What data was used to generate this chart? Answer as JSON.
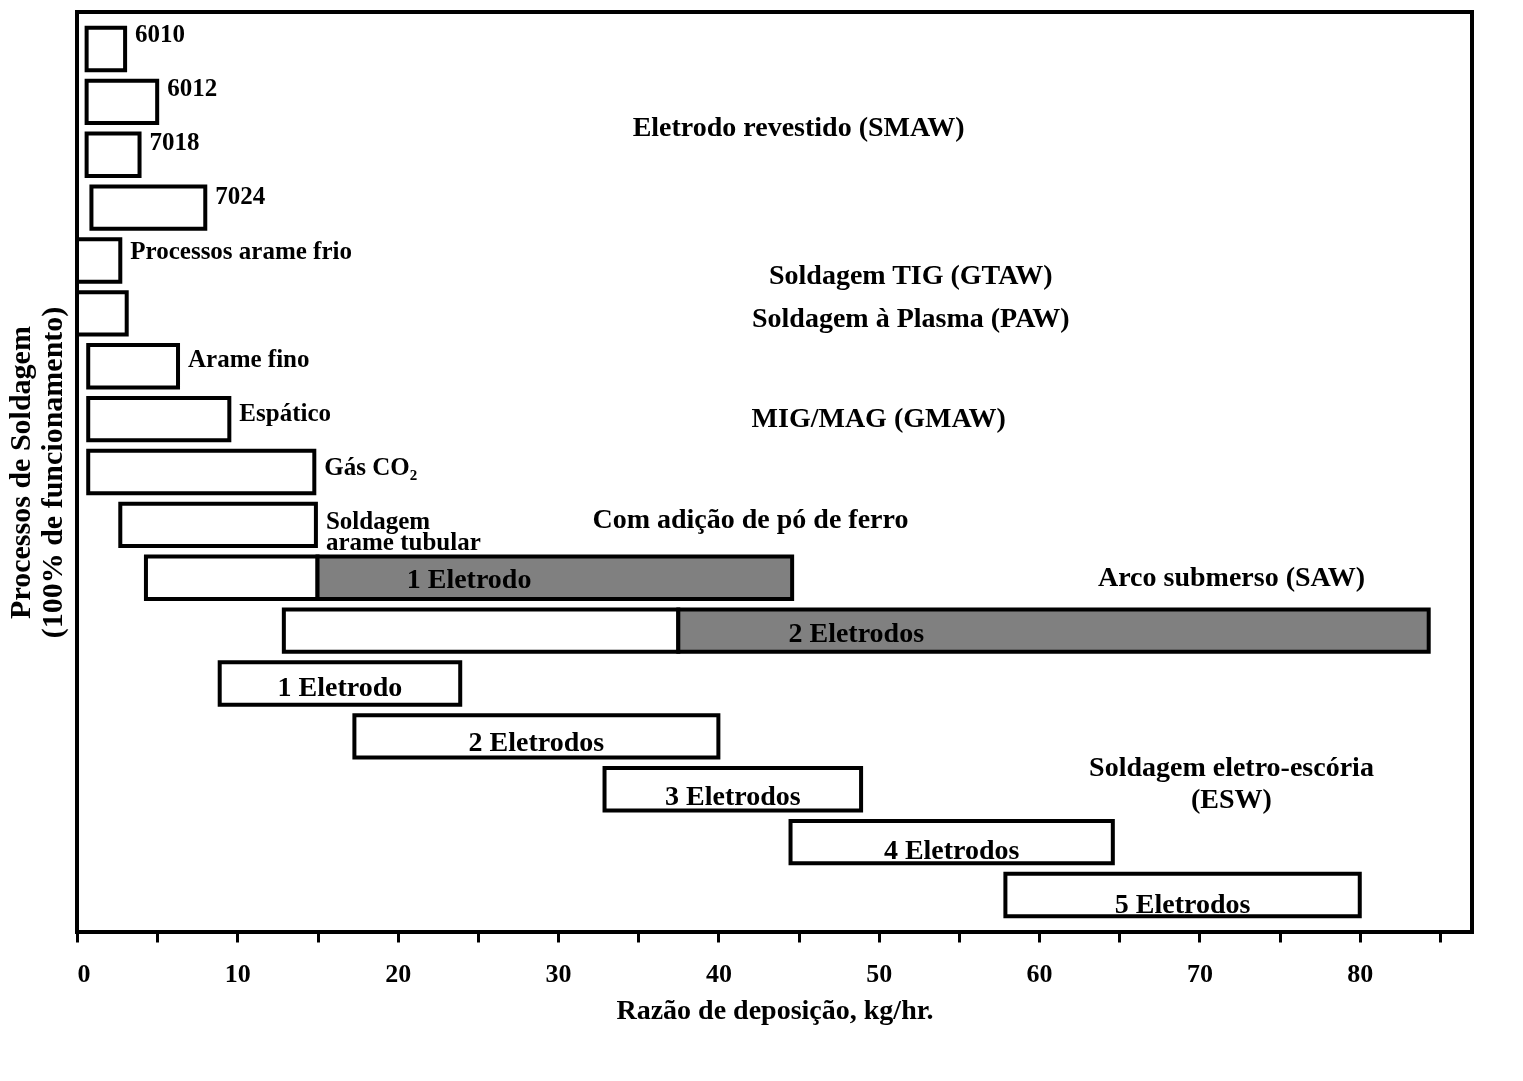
{
  "chart_data": {
    "type": "bar",
    "orientation": "horizontal",
    "xlabel": "Razão de deposição, kg/hr.",
    "ylabel": "Processos de Soldagem\n(100% de funcionamento)",
    "categories": [
      "6010",
      "6012",
      "7018",
      "7024",
      "Processos arame frio",
      null,
      "Arame fino",
      "Espático",
      "Gás CO₂",
      "Soldagem\narame tubular",
      "1 Eletrodo",
      "2 Eletrodos",
      "1 Eletrodo",
      "2 Eletrodos",
      "3 Eletrodos",
      "4 Eletrodos",
      "5 Eletrodos"
    ],
    "series": [
      {
        "color": "#ffffff",
        "base": [
          0.6,
          0.6,
          0.6,
          0.9,
          0,
          0,
          0.7,
          0.7,
          0.7,
          2.7,
          4.3,
          12.9,
          8.9,
          17.3,
          32.9,
          44.5,
          57.9
        ],
        "values": [
          2.4,
          4.4,
          3.3,
          7.1,
          2.7,
          3.1,
          5.6,
          8.8,
          14.1,
          12.2,
          10.7,
          24.6,
          15.0,
          22.7,
          16.0,
          20.1,
          22.1
        ]
      },
      {
        "color": "#808080",
        "base": [
          null,
          null,
          null,
          null,
          null,
          null,
          null,
          null,
          null,
          null,
          15.0,
          37.5,
          null,
          null,
          null,
          null,
          null
        ],
        "values": [
          null,
          null,
          null,
          null,
          null,
          null,
          null,
          null,
          null,
          null,
          29.6,
          46.8,
          null,
          null,
          null,
          null,
          null
        ]
      }
    ],
    "xlim": [
      0,
      87
    ],
    "xticks": [
      0,
      {
        "value": 5,
        "label": null
      },
      10,
      {
        "value": 15,
        "label": null
      },
      20,
      {
        "value": 25,
        "label": null
      },
      30,
      {
        "value": 35,
        "label": null
      },
      40,
      {
        "value": 45,
        "label": null
      },
      50,
      {
        "value": 55,
        "label": null
      },
      60,
      {
        "value": 65,
        "label": null
      },
      70,
      {
        "value": 75,
        "label": null
      },
      80,
      {
        "value": 85,
        "label": null
      }
    ],
    "grid": false,
    "legend": false,
    "annotations": [
      "Eletrodo revestido (SMAW)",
      "Soldagem TIG (GTAW)",
      "Soldagem à Plasma (PAW)",
      "MIG/MAG (GMAW)",
      "Com adição de pó de ferro",
      "Arco submerso (SAW)",
      "Soldagem eletro-escória\n(ESW)"
    ]
  }
}
